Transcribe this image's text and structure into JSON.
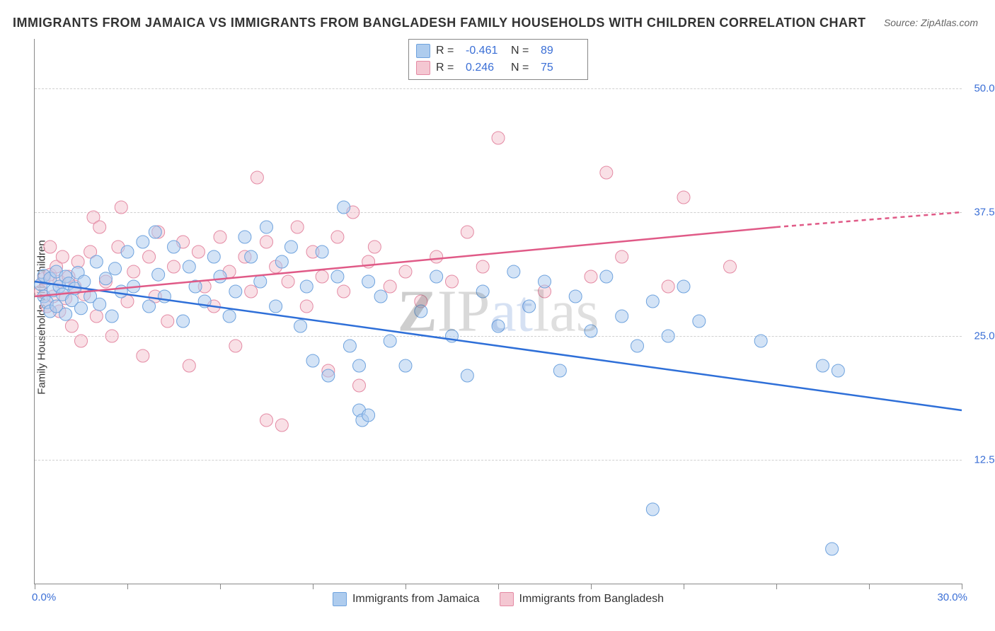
{
  "title": "IMMIGRANTS FROM JAMAICA VS IMMIGRANTS FROM BANGLADESH FAMILY HOUSEHOLDS WITH CHILDREN CORRELATION CHART",
  "source_label": "Source: ",
  "source_name": "ZipAtlas.com",
  "watermark": {
    "z": "Z",
    "ip": "IP",
    "at": "at",
    "las": "las"
  },
  "yaxis_label": "Family Households with Children",
  "chart": {
    "type": "scatter",
    "background_color": "#ffffff",
    "grid_color": "#d0d0d0",
    "axis_color": "#888888",
    "text_color": "#333333",
    "value_color": "#3b6fd6",
    "xlim": [
      0,
      30
    ],
    "ylim": [
      0,
      55
    ],
    "y_gridlines": [
      12.5,
      25.0,
      37.5,
      50.0
    ],
    "y_tick_labels": [
      "12.5%",
      "25.0%",
      "37.5%",
      "50.0%"
    ],
    "x_ticks": [
      0,
      3,
      6,
      9,
      12,
      15,
      18,
      21,
      24,
      27,
      30
    ],
    "x_tick_labels": {
      "min": "0.0%",
      "max": "30.0%"
    },
    "marker_radius": 9,
    "marker_opacity": 0.55,
    "line_width": 2.5,
    "series": [
      {
        "name": "Immigrants from Jamaica",
        "color_fill": "#aeccee",
        "color_stroke": "#6fa3de",
        "trend_color": "#2e6fd8",
        "R": "-0.461",
        "N": "89",
        "trendline": {
          "x1": 0,
          "y1": 30.5,
          "x2": 30,
          "y2": 17.5
        },
        "points": [
          [
            0.2,
            30.2
          ],
          [
            0.3,
            29.0
          ],
          [
            0.3,
            31.1
          ],
          [
            0.4,
            28.4
          ],
          [
            0.5,
            30.8
          ],
          [
            0.5,
            27.5
          ],
          [
            0.6,
            29.6
          ],
          [
            0.7,
            31.5
          ],
          [
            0.7,
            28.0
          ],
          [
            0.8,
            30.0
          ],
          [
            0.9,
            29.2
          ],
          [
            1.0,
            27.2
          ],
          [
            1.0,
            31.0
          ],
          [
            1.1,
            30.3
          ],
          [
            1.2,
            28.6
          ],
          [
            1.3,
            29.8
          ],
          [
            1.4,
            31.4
          ],
          [
            1.5,
            27.8
          ],
          [
            1.6,
            30.5
          ],
          [
            1.8,
            29.0
          ],
          [
            2.0,
            32.5
          ],
          [
            2.1,
            28.2
          ],
          [
            2.3,
            30.8
          ],
          [
            2.5,
            27.0
          ],
          [
            2.6,
            31.8
          ],
          [
            2.8,
            29.5
          ],
          [
            3.0,
            33.5
          ],
          [
            3.2,
            30.0
          ],
          [
            3.5,
            34.5
          ],
          [
            3.7,
            28.0
          ],
          [
            3.9,
            35.5
          ],
          [
            4.0,
            31.2
          ],
          [
            4.2,
            29.0
          ],
          [
            4.5,
            34.0
          ],
          [
            4.8,
            26.5
          ],
          [
            5.0,
            32.0
          ],
          [
            5.2,
            30.0
          ],
          [
            5.5,
            28.5
          ],
          [
            5.8,
            33.0
          ],
          [
            6.0,
            31.0
          ],
          [
            6.3,
            27.0
          ],
          [
            6.5,
            29.5
          ],
          [
            6.8,
            35.0
          ],
          [
            7.0,
            33.0
          ],
          [
            7.3,
            30.5
          ],
          [
            7.5,
            36.0
          ],
          [
            7.8,
            28.0
          ],
          [
            8.0,
            32.5
          ],
          [
            8.3,
            34.0
          ],
          [
            8.6,
            26.0
          ],
          [
            8.8,
            30.0
          ],
          [
            9.0,
            22.5
          ],
          [
            9.3,
            33.5
          ],
          [
            9.5,
            21.0
          ],
          [
            9.8,
            31.0
          ],
          [
            10.0,
            38.0
          ],
          [
            10.2,
            24.0
          ],
          [
            10.5,
            22.0
          ],
          [
            10.5,
            17.5
          ],
          [
            10.6,
            16.5
          ],
          [
            10.8,
            17.0
          ],
          [
            10.8,
            30.5
          ],
          [
            11.2,
            29.0
          ],
          [
            11.5,
            24.5
          ],
          [
            12.0,
            22.0
          ],
          [
            12.5,
            27.5
          ],
          [
            13.0,
            31.0
          ],
          [
            13.5,
            25.0
          ],
          [
            14.0,
            21.0
          ],
          [
            14.5,
            29.5
          ],
          [
            15.0,
            26.0
          ],
          [
            15.5,
            31.5
          ],
          [
            16.0,
            28.0
          ],
          [
            16.5,
            30.5
          ],
          [
            17.0,
            21.5
          ],
          [
            17.5,
            29.0
          ],
          [
            18.0,
            25.5
          ],
          [
            18.5,
            31.0
          ],
          [
            19.0,
            27.0
          ],
          [
            19.5,
            24.0
          ],
          [
            20.0,
            28.5
          ],
          [
            20.0,
            7.5
          ],
          [
            20.5,
            25.0
          ],
          [
            21.0,
            30.0
          ],
          [
            21.5,
            26.5
          ],
          [
            23.5,
            24.5
          ],
          [
            25.5,
            22.0
          ],
          [
            25.8,
            3.5
          ],
          [
            26.0,
            21.5
          ]
        ]
      },
      {
        "name": "Immigrants from Bangladesh",
        "color_fill": "#f4c7d2",
        "color_stroke": "#e48aa4",
        "trend_color": "#e05a87",
        "R": "0.246",
        "N": "75",
        "trendline": {
          "x1": 0,
          "y1": 29.0,
          "x2": 24,
          "y2": 36.0,
          "x_ext": 30,
          "y_ext": 37.5
        },
        "points": [
          [
            0.2,
            29.5
          ],
          [
            0.3,
            30.8
          ],
          [
            0.4,
            28.0
          ],
          [
            0.5,
            31.2
          ],
          [
            0.5,
            34.0
          ],
          [
            0.6,
            29.0
          ],
          [
            0.7,
            32.0
          ],
          [
            0.8,
            27.5
          ],
          [
            0.8,
            30.5
          ],
          [
            0.9,
            33.0
          ],
          [
            1.0,
            28.8
          ],
          [
            1.1,
            31.0
          ],
          [
            1.2,
            26.0
          ],
          [
            1.3,
            30.0
          ],
          [
            1.4,
            32.5
          ],
          [
            1.5,
            24.5
          ],
          [
            1.6,
            29.2
          ],
          [
            1.8,
            33.5
          ],
          [
            1.9,
            37.0
          ],
          [
            2.0,
            27.0
          ],
          [
            2.1,
            36.0
          ],
          [
            2.3,
            30.5
          ],
          [
            2.5,
            25.0
          ],
          [
            2.7,
            34.0
          ],
          [
            2.8,
            38.0
          ],
          [
            3.0,
            28.5
          ],
          [
            3.2,
            31.5
          ],
          [
            3.5,
            23.0
          ],
          [
            3.7,
            33.0
          ],
          [
            3.9,
            29.0
          ],
          [
            4.0,
            35.5
          ],
          [
            4.3,
            26.5
          ],
          [
            4.5,
            32.0
          ],
          [
            4.8,
            34.5
          ],
          [
            5.0,
            22.0
          ],
          [
            5.3,
            33.5
          ],
          [
            5.5,
            30.0
          ],
          [
            5.8,
            28.0
          ],
          [
            6.0,
            35.0
          ],
          [
            6.3,
            31.5
          ],
          [
            6.5,
            24.0
          ],
          [
            6.8,
            33.0
          ],
          [
            7.0,
            29.5
          ],
          [
            7.2,
            41.0
          ],
          [
            7.5,
            34.5
          ],
          [
            7.5,
            16.5
          ],
          [
            7.8,
            32.0
          ],
          [
            8.0,
            16.0
          ],
          [
            8.2,
            30.5
          ],
          [
            8.5,
            36.0
          ],
          [
            8.8,
            28.0
          ],
          [
            9.0,
            33.5
          ],
          [
            9.3,
            31.0
          ],
          [
            9.5,
            21.5
          ],
          [
            9.8,
            35.0
          ],
          [
            10.0,
            29.5
          ],
          [
            10.3,
            37.5
          ],
          [
            10.5,
            20.0
          ],
          [
            10.8,
            32.5
          ],
          [
            11.0,
            34.0
          ],
          [
            11.5,
            30.0
          ],
          [
            12.0,
            31.5
          ],
          [
            12.5,
            28.5
          ],
          [
            13.0,
            33.0
          ],
          [
            13.5,
            30.5
          ],
          [
            14.0,
            35.5
          ],
          [
            14.5,
            32.0
          ],
          [
            15.0,
            45.0
          ],
          [
            16.5,
            29.5
          ],
          [
            18.0,
            31.0
          ],
          [
            18.5,
            41.5
          ],
          [
            19.0,
            33.0
          ],
          [
            20.5,
            30.0
          ],
          [
            21.0,
            39.0
          ],
          [
            22.5,
            32.0
          ]
        ]
      }
    ]
  },
  "legend_top_labels": {
    "R": "R =",
    "N": "N ="
  }
}
